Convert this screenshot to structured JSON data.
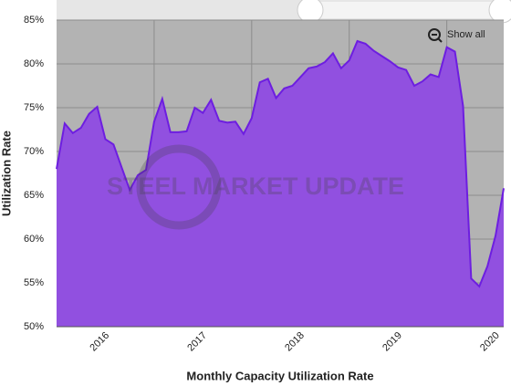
{
  "chart_data": {
    "type": "area",
    "x_axis_label": "Monthly Capacity Utilization Rate",
    "y_axis_label": "Utilization Rate",
    "watermark": "STEEL MARKET UPDATE",
    "button": "Show all",
    "categories": [
      "2016",
      null,
      null,
      null,
      null,
      null,
      null,
      null,
      null,
      null,
      null,
      null,
      "2017",
      null,
      null,
      null,
      null,
      null,
      null,
      null,
      null,
      null,
      null,
      null,
      "2018",
      null,
      null,
      null,
      null,
      null,
      null,
      null,
      null,
      null,
      null,
      null,
      "2019",
      null,
      null,
      null,
      null,
      null,
      null,
      null,
      null,
      null,
      null,
      null,
      "2020",
      null,
      null,
      null,
      null,
      null,
      null,
      null
    ],
    "values": [
      68.0,
      73.2,
      72.1,
      72.7,
      74.3,
      75.1,
      71.4,
      70.8,
      68.2,
      65.6,
      67.3,
      67.9,
      73.4,
      76.0,
      72.2,
      72.2,
      72.3,
      75.0,
      74.4,
      75.9,
      73.5,
      73.3,
      73.4,
      72.0,
      73.8,
      77.9,
      78.3,
      76.1,
      77.2,
      77.5,
      78.5,
      79.5,
      79.7,
      80.2,
      81.2,
      79.5,
      80.4,
      82.6,
      82.3,
      81.5,
      80.9,
      80.3,
      79.6,
      79.3,
      77.5,
      78.0,
      78.8,
      78.5,
      81.9,
      81.4,
      75.2,
      55.5,
      54.6,
      56.9,
      60.4,
      65.8
    ],
    "color": "#9150e0",
    "line_color": "#6d1ee0",
    "plot_background": "#b3b3b3",
    "ylim": [
      50,
      85
    ],
    "yticks": [
      {
        "value": 50,
        "label": "50%"
      },
      {
        "value": 55,
        "label": "55%"
      },
      {
        "value": 60,
        "label": "60%"
      },
      {
        "value": 65,
        "label": "65%"
      },
      {
        "value": 70,
        "label": "70%"
      },
      {
        "value": 75,
        "label": "75%"
      },
      {
        "value": 80,
        "label": "80%"
      },
      {
        "value": 85,
        "label": "85%"
      }
    ],
    "grid": true
  }
}
